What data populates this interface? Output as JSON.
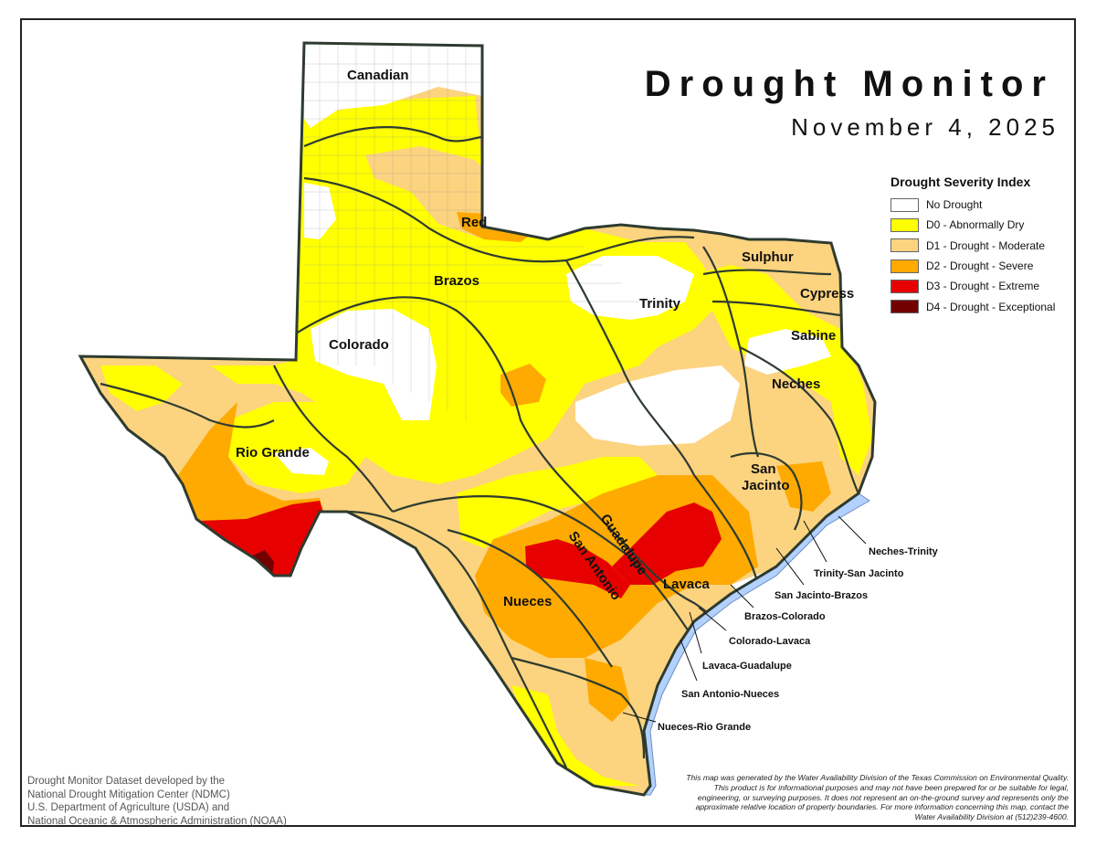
{
  "title": "Drought Monitor",
  "date": "November 4, 2025",
  "legend": {
    "title": "Drought Severity Index",
    "items": [
      {
        "label": "No Drought",
        "color": "#ffffff"
      },
      {
        "label": "D0 - Abnormally Dry",
        "color": "#ffff00"
      },
      {
        "label": "D1 - Drought - Moderate",
        "color": "#fcd37f"
      },
      {
        "label": "D2 - Drought - Severe",
        "color": "#ffaa00"
      },
      {
        "label": "D3 - Drought - Extreme",
        "color": "#e60000"
      },
      {
        "label": "D4 - Drought - Exceptional",
        "color": "#730000"
      }
    ]
  },
  "basins": {
    "canadian": "Canadian",
    "red": "Red",
    "brazos": "Brazos",
    "sulphur": "Sulphur",
    "cypress": "Cypress",
    "trinity": "Trinity",
    "sabine": "Sabine",
    "colorado": "Colorado",
    "neches": "Neches",
    "rio_grande": "Rio Grande",
    "san_jacinto_1": "San",
    "san_jacinto_2": "Jacinto",
    "guadalupe": "Guadalupe",
    "san_antonio": "San Antonio",
    "lavaca": "Lavaca",
    "nueces": "Nueces"
  },
  "coastal_basins": {
    "neches_trinity": "Neches-Trinity",
    "trinity_san_jacinto": "Trinity-San Jacinto",
    "san_jacinto_brazos": "San Jacinto-Brazos",
    "brazos_colorado": "Brazos-Colorado",
    "colorado_lavaca": "Colorado-Lavaca",
    "lavaca_guadalupe": "Lavaca-Guadalupe",
    "san_antonio_nueces": "San Antonio-Nueces",
    "nueces_rio_grande": "Nueces-Rio Grande"
  },
  "credit": [
    "Drought Monitor Dataset developed by the",
    "National Drought Mitigation Center (NDMC)",
    "U.S. Department of Agriculture (USDA) and",
    "National Oceanic & Atmospheric Administration (NOAA)"
  ],
  "disclaimer": "This map was generated by the Water Availability Division of the Texas Commission on Environmental Quality. This product is for informational purposes and may not have been prepared for or be suitable for legal, engineering, or surveying purposes. It does not represent an on-the-ground survey and represents only the approximate relative location of property boundaries. For more information concerning this map, contact the Water Availability Division at (512)239-4600."
}
